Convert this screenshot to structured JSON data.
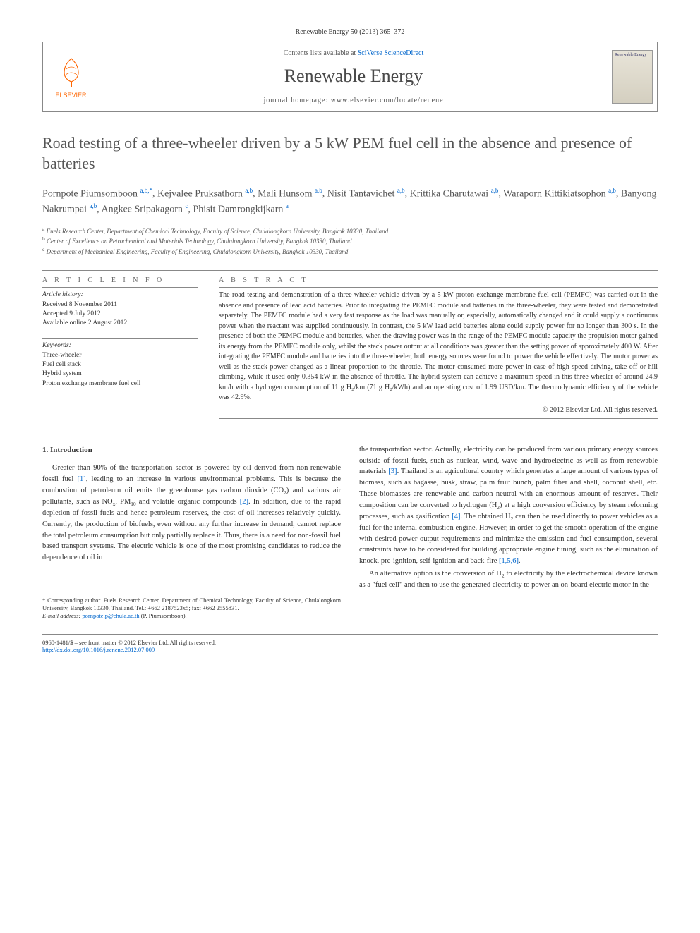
{
  "journal_ref": "Renewable Energy 50 (2013) 365–372",
  "header": {
    "elsevier": "ELSEVIER",
    "contents_prefix": "Contents lists available at ",
    "contents_link": "SciVerse ScienceDirect",
    "journal_name": "Renewable Energy",
    "homepage_label": "journal homepage: ",
    "homepage_url": "www.elsevier.com/locate/renene",
    "cover_title": "Renewable Energy"
  },
  "title": "Road testing of a three-wheeler driven by a 5 kW PEM fuel cell in the absence and presence of batteries",
  "authors_html": "Pornpote Piumsomboon <sup>a,b,*</sup>, Kejvalee Pruksathorn <sup>a,b</sup>, Mali Hunsom <sup>a,b</sup>, Nisit Tantavichet <sup>a,b</sup>, Krittika Charutawai <sup>a,b</sup>, Waraporn Kittikiatsophon <sup>a,b</sup>, Banyong Nakrumpai <sup>a,b</sup>, Angkee Sripakagorn <sup>c</sup>, Phisit Damrongkijkarn <sup>a</sup>",
  "affiliations": {
    "a": "Fuels Research Center, Department of Chemical Technology, Faculty of Science, Chulalongkorn University, Bangkok 10330, Thailand",
    "b": "Center of Excellence on Petrochemical and Materials Technology, Chulalongkorn University, Bangkok 10330, Thailand",
    "c": "Department of Mechanical Engineering, Faculty of Engineering, Chulalongkorn University, Bangkok 10330, Thailand"
  },
  "info": {
    "heading": "A R T I C L E   I N F O",
    "history_label": "Article history:",
    "received": "Received 8 November 2011",
    "accepted": "Accepted 9 July 2012",
    "online": "Available online 2 August 2012",
    "keywords_label": "Keywords:",
    "keywords": [
      "Three-wheeler",
      "Fuel cell stack",
      "Hybrid system",
      "Proton exchange membrane fuel cell"
    ]
  },
  "abstract": {
    "heading": "A B S T R A C T",
    "text": "The road testing and demonstration of a three-wheeler vehicle driven by a 5 kW proton exchange membrane fuel cell (PEMFC) was carried out in the absence and presence of lead acid batteries. Prior to integrating the PEMFC module and batteries in the three-wheeler, they were tested and demonstrated separately. The PEMFC module had a very fast response as the load was manually or, especially, automatically changed and it could supply a continuous power when the reactant was supplied continuously. In contrast, the 5 kW lead acid batteries alone could supply power for no longer than 300 s. In the presence of both the PEMFC module and batteries, when the drawing power was in the range of the PEMFC module capacity the propulsion motor gained its energy from the PEMFC module only, whilst the stack power output at all conditions was greater than the setting power of approximately 400 W. After integrating the PEMFC module and batteries into the three-wheeler, both energy sources were found to power the vehicle effectively. The motor power as well as the stack power changed as a linear proportion to the throttle. The motor consumed more power in case of high speed driving, take off or hill climbing, while it used only 0.354 kW in the absence of throttle. The hybrid system can achieve a maximum speed in this three-wheeler of around 24.9 km/h with a hydrogen consumption of 11 g H₂/km (71 g H₂/kWh) and an operating cost of 1.99 USD/km. The thermodynamic efficiency of the vehicle was 42.9%.",
    "copyright": "© 2012 Elsevier Ltd. All rights reserved."
  },
  "body": {
    "section_num": "1.",
    "section_title": "Introduction",
    "col1_p1": "Greater than 90% of the transportation sector is powered by oil derived from non-renewable fossil fuel [1], leading to an increase in various environmental problems. This is because the combustion of petroleum oil emits the greenhouse gas carbon dioxide (CO₂) and various air pollutants, such as NOₓ, PM₁₀ and volatile organic compounds [2]. In addition, due to the rapid depletion of fossil fuels and hence petroleum reserves, the cost of oil increases relatively quickly. Currently, the production of biofuels, even without any further increase in demand, cannot replace the total petroleum consumption but only partially replace it. Thus, there is a need for non-fossil fuel based transport systems. The electric vehicle is one of the most promising candidates to reduce the dependence of oil in",
    "col2_p1": "the transportation sector. Actually, electricity can be produced from various primary energy sources outside of fossil fuels, such as nuclear, wind, wave and hydroelectric as well as from renewable materials [3]. Thailand is an agricultural country which generates a large amount of various types of biomass, such as bagasse, husk, straw, palm fruit bunch, palm fiber and shell, coconut shell, etc. These biomasses are renewable and carbon neutral with an enormous amount of reserves. Their composition can be converted to hydrogen (H₂) at a high conversion efficiency by steam reforming processes, such as gasification [4]. The obtained H₂ can then be used directly to power vehicles as a fuel for the internal combustion engine. However, in order to get the smooth operation of the engine with desired power output requirements and minimize the emission and fuel consumption, several constraints have to be considered for building appropriate engine tuning, such as the elimination of knock, pre-ignition, self-ignition and back-fire [1,5,6].",
    "col2_p2": "An alternative option is the conversion of H₂ to electricity by the electrochemical device known as a \"fuel cell\" and then to use the generated electricity to power an on-board electric motor in the"
  },
  "footnote": {
    "corr": "* Corresponding author. Fuels Research Center, Department of Chemical Technology, Faculty of Science, Chulalongkorn University, Bangkok 10330, Thailand. Tel.: +662 2187523x5; fax: +662 2555831.",
    "email_label": "E-mail address: ",
    "email": "pornpote.p@chula.ac.th",
    "email_suffix": " (P. Piumsomboon)."
  },
  "bottom": {
    "issn": "0960-1481/$ – see front matter © 2012 Elsevier Ltd. All rights reserved.",
    "doi": "http://dx.doi.org/10.1016/j.renene.2012.07.009"
  }
}
